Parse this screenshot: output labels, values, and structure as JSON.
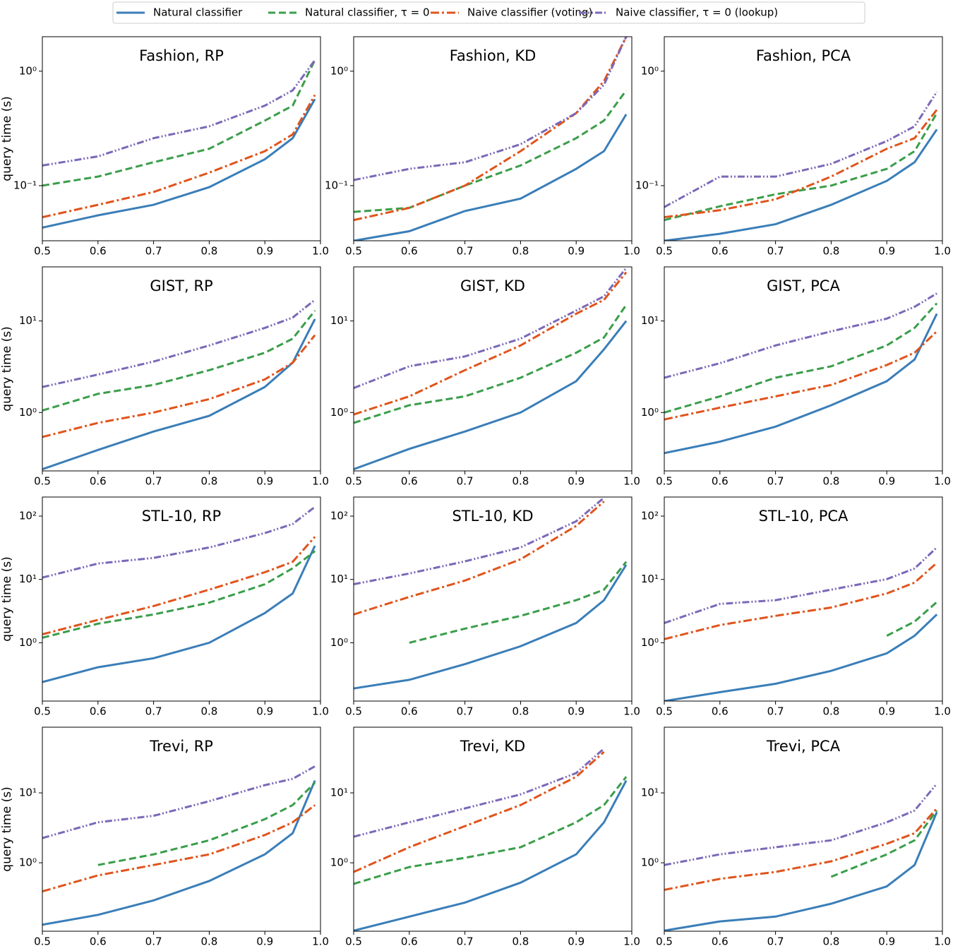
{
  "chart_data": [
    {
      "type": "line",
      "title": "Fashion, RP",
      "ylabel": "query time (s)",
      "log_y": true,
      "x": [
        0.5,
        0.6,
        0.7,
        0.8,
        0.9,
        0.95,
        0.99
      ],
      "xlim": [
        0.5,
        1.0
      ],
      "xticks": [
        0.5,
        0.6,
        0.7,
        0.8,
        0.9,
        {
          "value": 1.0,
          "label": "1.0"
        }
      ],
      "ylim": [
        0.033,
        2.0
      ],
      "yticks": [
        {
          "value": 0.1,
          "label": "10⁻¹"
        },
        {
          "value": 1,
          "label": "10⁰"
        }
      ],
      "series": [
        {
          "name": "Natural classifier",
          "color": "#3a7eb8",
          "linestyle": "solid",
          "values": [
            0.043,
            0.055,
            0.068,
            0.097,
            0.17,
            0.26,
            0.57
          ]
        },
        {
          "name": "Natural classifier, τ = 0",
          "color": "#3a9e4a",
          "linestyle": "dashed",
          "values": [
            0.1,
            0.12,
            0.16,
            0.21,
            0.37,
            0.5,
            1.25
          ]
        },
        {
          "name": "Naive classifier (voting)",
          "color": "#e0541c",
          "linestyle": "dashdot",
          "values": [
            0.053,
            0.068,
            0.088,
            0.13,
            0.2,
            0.28,
            0.62
          ]
        },
        {
          "name": "Naive classifier, τ = 0 (lookup)",
          "color": "#7b68b8",
          "linestyle": "dashdotdot",
          "values": [
            0.15,
            0.18,
            0.26,
            0.33,
            0.5,
            0.68,
            1.25
          ]
        }
      ]
    },
    {
      "type": "line",
      "title": "Fashion, KD",
      "log_y": true,
      "x": [
        0.5,
        0.6,
        0.7,
        0.8,
        0.9,
        0.95,
        0.99
      ],
      "xlim": [
        0.5,
        1.0
      ],
      "xticks": [
        0.5,
        0.6,
        0.7,
        0.8,
        0.9,
        {
          "value": 1.0,
          "label": "1.0"
        }
      ],
      "ylim": [
        0.033,
        2.0
      ],
      "yticks": [
        {
          "value": 0.1,
          "label": "10⁻¹"
        },
        {
          "value": 1,
          "label": "10⁰"
        }
      ],
      "series": [
        {
          "color": "#3a7eb8",
          "linestyle": "solid",
          "values": [
            0.033,
            0.04,
            0.06,
            0.077,
            0.14,
            0.2,
            0.42
          ]
        },
        {
          "color": "#3a9e4a",
          "linestyle": "dashed",
          "values": [
            0.059,
            0.064,
            0.1,
            0.15,
            0.26,
            0.37,
            0.68
          ]
        },
        {
          "color": "#e0541c",
          "linestyle": "dashdot",
          "values": [
            0.05,
            0.064,
            0.1,
            0.2,
            0.43,
            0.82,
            2.0
          ]
        },
        {
          "color": "#7b68b8",
          "linestyle": "dashdotdot",
          "values": [
            0.112,
            0.14,
            0.16,
            0.23,
            0.43,
            0.76,
            2.0
          ]
        }
      ]
    },
    {
      "type": "line",
      "title": "Fashion, PCA",
      "log_y": true,
      "x": [
        0.5,
        0.6,
        0.7,
        0.8,
        0.9,
        0.95,
        0.99
      ],
      "xlim": [
        0.5,
        1.0
      ],
      "xticks": [
        0.5,
        0.6,
        0.7,
        0.8,
        0.9,
        {
          "value": 1.0,
          "label": "1.0"
        }
      ],
      "ylim": [
        0.033,
        2.0
      ],
      "yticks": [
        {
          "value": 0.1,
          "label": "10⁻¹"
        },
        {
          "value": 1,
          "label": "10⁰"
        }
      ],
      "series": [
        {
          "color": "#3a7eb8",
          "linestyle": "solid",
          "values": [
            0.033,
            0.038,
            0.046,
            0.068,
            0.11,
            0.16,
            0.31
          ]
        },
        {
          "color": "#3a9e4a",
          "linestyle": "dashed",
          "values": [
            0.05,
            0.066,
            0.084,
            0.1,
            0.14,
            0.2,
            0.43
          ]
        },
        {
          "color": "#e0541c",
          "linestyle": "dashdot",
          "values": [
            0.053,
            0.061,
            0.076,
            0.12,
            0.21,
            0.26,
            0.46
          ]
        },
        {
          "color": "#7b68b8",
          "linestyle": "dashdotdot",
          "values": [
            0.065,
            0.12,
            0.12,
            0.155,
            0.245,
            0.33,
            0.66
          ]
        }
      ]
    },
    {
      "type": "line",
      "title": "GIST, RP",
      "ylabel": "query time (s)",
      "log_y": true,
      "x": [
        0.5,
        0.6,
        0.7,
        0.8,
        0.9,
        0.95,
        0.99
      ],
      "xlim": [
        0.5,
        1.0
      ],
      "xticks": [
        0.5,
        0.6,
        0.7,
        0.8,
        0.9,
        {
          "value": 1.0,
          "label": "1.0"
        }
      ],
      "ylim": [
        0.23,
        39
      ],
      "yticks": [
        {
          "value": 1,
          "label": "10⁰"
        },
        {
          "value": 10,
          "label": "10¹"
        }
      ],
      "series": [
        {
          "color": "#3a7eb8",
          "linestyle": "solid",
          "values": [
            0.24,
            0.39,
            0.62,
            0.92,
            1.9,
            3.5,
            10.5
          ]
        },
        {
          "color": "#3a9e4a",
          "linestyle": "dashed",
          "values": [
            1.05,
            1.6,
            2.0,
            2.9,
            4.5,
            6.4,
            13
          ]
        },
        {
          "color": "#e0541c",
          "linestyle": "dashdot",
          "values": [
            0.54,
            0.77,
            1.0,
            1.4,
            2.3,
            3.5,
            7
          ]
        },
        {
          "color": "#7b68b8",
          "linestyle": "dashdotdot",
          "values": [
            1.9,
            2.6,
            3.6,
            5.4,
            8.4,
            10.9,
            17
          ]
        }
      ]
    },
    {
      "type": "line",
      "title": "GIST, KD",
      "log_y": true,
      "x": [
        0.5,
        0.6,
        0.7,
        0.8,
        0.9,
        0.95,
        0.99
      ],
      "xlim": [
        0.5,
        1.0
      ],
      "xticks": [
        0.5,
        0.6,
        0.7,
        0.8,
        0.9,
        {
          "value": 1.0,
          "label": "1.0"
        }
      ],
      "ylim": [
        0.23,
        39
      ],
      "yticks": [
        {
          "value": 1,
          "label": "10⁰"
        },
        {
          "value": 10,
          "label": "10¹"
        }
      ],
      "series": [
        {
          "color": "#3a7eb8",
          "linestyle": "solid",
          "values": [
            0.24,
            0.4,
            0.62,
            1.0,
            2.2,
            4.9,
            10
          ]
        },
        {
          "color": "#3a9e4a",
          "linestyle": "dashed",
          "values": [
            0.77,
            1.2,
            1.5,
            2.4,
            4.5,
            6.6,
            15
          ]
        },
        {
          "color": "#e0541c",
          "linestyle": "dashdot",
          "values": [
            0.95,
            1.5,
            2.9,
            5.4,
            12,
            17,
            34
          ]
        },
        {
          "color": "#7b68b8",
          "linestyle": "dashdotdot",
          "values": [
            1.85,
            3.2,
            4.1,
            6.4,
            13,
            18.6,
            38
          ]
        }
      ]
    },
    {
      "type": "line",
      "title": "GIST, PCA",
      "log_y": true,
      "x": [
        0.5,
        0.6,
        0.7,
        0.8,
        0.9,
        0.95,
        0.99
      ],
      "xlim": [
        0.5,
        1.0
      ],
      "xticks": [
        0.5,
        0.6,
        0.7,
        0.8,
        0.9,
        {
          "value": 1.0,
          "label": "1.0"
        }
      ],
      "ylim": [
        0.23,
        39
      ],
      "yticks": [
        {
          "value": 1,
          "label": "10⁰"
        },
        {
          "value": 10,
          "label": "10¹"
        }
      ],
      "series": [
        {
          "color": "#3a7eb8",
          "linestyle": "solid",
          "values": [
            0.36,
            0.48,
            0.7,
            1.2,
            2.2,
            3.8,
            12
          ]
        },
        {
          "color": "#3a9e4a",
          "linestyle": "dashed",
          "values": [
            1.0,
            1.5,
            2.4,
            3.2,
            5.4,
            8.4,
            15.6
          ]
        },
        {
          "color": "#e0541c",
          "linestyle": "dashdot",
          "values": [
            0.84,
            1.13,
            1.5,
            2.0,
            3.3,
            4.5,
            7.7
          ]
        },
        {
          "color": "#7b68b8",
          "linestyle": "dashdotdot",
          "values": [
            2.4,
            3.45,
            5.4,
            7.7,
            10.6,
            14.3,
            20
          ]
        }
      ]
    },
    {
      "type": "line",
      "title": "STL-10, RP",
      "ylabel": "query time (s)",
      "log_y": true,
      "x": [
        0.5,
        0.6,
        0.7,
        0.8,
        0.9,
        0.95,
        0.99
      ],
      "xlim": [
        0.5,
        1.0
      ],
      "xticks": [
        0.5,
        0.6,
        0.7,
        0.8,
        0.9,
        {
          "value": 1.0,
          "label": "1.0"
        }
      ],
      "ylim": [
        0.12,
        200
      ],
      "yticks": [
        {
          "value": 1,
          "label": "10⁰"
        },
        {
          "value": 10,
          "label": "10¹"
        },
        {
          "value": 100,
          "label": "10²"
        }
      ],
      "series": [
        {
          "color": "#3a7eb8",
          "linestyle": "solid",
          "values": [
            0.24,
            0.41,
            0.57,
            1.0,
            2.95,
            6.0,
            34
          ]
        },
        {
          "color": "#3a9e4a",
          "linestyle": "dashed",
          "values": [
            1.2,
            2.0,
            2.8,
            4.3,
            8.4,
            15,
            28
          ]
        },
        {
          "color": "#e0541c",
          "linestyle": "dashdot",
          "values": [
            1.36,
            2.3,
            3.8,
            6.9,
            13,
            19,
            47
          ]
        },
        {
          "color": "#7b68b8",
          "linestyle": "dashdotdot",
          "values": [
            10.7,
            17.8,
            21.9,
            32,
            54,
            75,
            140
          ]
        }
      ]
    },
    {
      "type": "line",
      "title": "STL-10, KD",
      "log_y": true,
      "x": [
        0.5,
        0.6,
        0.7,
        0.8,
        0.9,
        0.95,
        0.99
      ],
      "xlim": [
        0.5,
        1.0
      ],
      "xticks": [
        0.5,
        0.6,
        0.7,
        0.8,
        0.9,
        {
          "value": 1.0,
          "label": "1.0"
        }
      ],
      "ylim": [
        0.12,
        200
      ],
      "yticks": [
        {
          "value": 1,
          "label": "10⁰"
        },
        {
          "value": 10,
          "label": "10¹"
        },
        {
          "value": 100,
          "label": "10²"
        }
      ],
      "series": [
        {
          "color": "#3a7eb8",
          "linestyle": "solid",
          "values": [
            0.19,
            0.26,
            0.46,
            0.88,
            2.05,
            4.7,
            17
          ]
        },
        {
          "color": "#3a9e4a",
          "linestyle": "dashed",
          "values": [
            null,
            1.0,
            1.67,
            2.66,
            4.7,
            6.9,
            19
          ]
        },
        {
          "color": "#e0541c",
          "linestyle": "dashdot",
          "values": [
            2.8,
            5.3,
            9.6,
            20.8,
            70,
            170,
            null
          ]
        },
        {
          "color": "#7b68b8",
          "linestyle": "dashdotdot",
          "values": [
            8.4,
            12.4,
            19.3,
            32,
            83,
            195,
            null
          ]
        }
      ]
    },
    {
      "type": "line",
      "title": "STL-10, PCA",
      "log_y": true,
      "x": [
        0.5,
        0.6,
        0.7,
        0.8,
        0.9,
        0.95,
        0.99
      ],
      "xlim": [
        0.5,
        1.0
      ],
      "xticks": [
        0.5,
        0.6,
        0.7,
        0.8,
        0.9,
        {
          "value": 1.0,
          "label": "1.0"
        }
      ],
      "ylim": [
        0.12,
        200
      ],
      "yticks": [
        {
          "value": 1,
          "label": "10⁰"
        },
        {
          "value": 10,
          "label": "10¹"
        },
        {
          "value": 100,
          "label": "10²"
        }
      ],
      "series": [
        {
          "color": "#3a7eb8",
          "linestyle": "solid",
          "values": [
            0.12,
            0.166,
            0.225,
            0.36,
            0.68,
            1.29,
            2.8
          ]
        },
        {
          "color": "#3a9e4a",
          "linestyle": "dashed",
          "values": [
            null,
            null,
            null,
            null,
            1.29,
            2.16,
            4.4
          ]
        },
        {
          "color": "#e0541c",
          "linestyle": "dashdot",
          "values": [
            1.14,
            1.9,
            2.66,
            3.6,
            6.0,
            8.9,
            18.3
          ]
        },
        {
          "color": "#7b68b8",
          "linestyle": "dashdotdot",
          "values": [
            2.05,
            4.1,
            4.7,
            6.9,
            10.1,
            14.9,
            32
          ]
        }
      ]
    },
    {
      "type": "line",
      "title": "Trevi, RP",
      "ylabel": "query time (s)",
      "log_y": true,
      "x": [
        0.5,
        0.6,
        0.7,
        0.8,
        0.9,
        0.95,
        0.99
      ],
      "xlim": [
        0.5,
        1.0
      ],
      "xticks": [
        0.5,
        0.6,
        0.7,
        0.8,
        0.9,
        {
          "value": 1.0,
          "label": "1.0"
        }
      ],
      "ylim": [
        0.105,
        87
      ],
      "yticks": [
        {
          "value": 1,
          "label": "10⁰"
        },
        {
          "value": 10,
          "label": "10¹"
        }
      ],
      "series": [
        {
          "color": "#3a7eb8",
          "linestyle": "solid",
          "values": [
            0.13,
            0.18,
            0.29,
            0.55,
            1.32,
            2.65,
            15
          ]
        },
        {
          "color": "#3a9e4a",
          "linestyle": "dashed",
          "values": [
            null,
            0.93,
            1.32,
            2.1,
            4.2,
            6.7,
            14
          ]
        },
        {
          "color": "#e0541c",
          "linestyle": "dashdot",
          "values": [
            0.39,
            0.66,
            0.93,
            1.32,
            2.5,
            3.8,
            6.7
          ]
        },
        {
          "color": "#7b68b8",
          "linestyle": "dashdotdot",
          "values": [
            2.26,
            3.8,
            4.7,
            7.6,
            12.9,
            15.9,
            24
          ]
        }
      ]
    },
    {
      "type": "line",
      "title": "Trevi, KD",
      "log_y": true,
      "x": [
        0.5,
        0.6,
        0.7,
        0.8,
        0.9,
        0.95,
        0.99
      ],
      "xlim": [
        0.5,
        1.0
      ],
      "xticks": [
        0.5,
        0.6,
        0.7,
        0.8,
        0.9,
        {
          "value": 1.0,
          "label": "1.0"
        }
      ],
      "ylim": [
        0.105,
        87
      ],
      "yticks": [
        {
          "value": 1,
          "label": "10⁰"
        },
        {
          "value": 10,
          "label": "10¹"
        }
      ],
      "series": [
        {
          "color": "#3a7eb8",
          "linestyle": "solid",
          "values": [
            0.107,
            0.17,
            0.27,
            0.52,
            1.32,
            3.8,
            15
          ]
        },
        {
          "color": "#3a9e4a",
          "linestyle": "dashed",
          "values": [
            0.5,
            0.87,
            1.18,
            1.67,
            3.8,
            6.7,
            17
          ]
        },
        {
          "color": "#e0541c",
          "linestyle": "dashdot",
          "values": [
            0.74,
            1.67,
            3.35,
            6.7,
            17,
            38.6,
            null
          ]
        },
        {
          "color": "#7b68b8",
          "linestyle": "dashdotdot",
          "values": [
            2.36,
            3.8,
            6.0,
            9.5,
            19.2,
            43,
            null
          ]
        }
      ]
    },
    {
      "type": "line",
      "title": "Trevi, PCA",
      "log_y": true,
      "x": [
        0.5,
        0.6,
        0.7,
        0.8,
        0.9,
        0.95,
        0.99
      ],
      "xlim": [
        0.5,
        1.0
      ],
      "xticks": [
        0.5,
        0.6,
        0.7,
        0.8,
        0.9,
        {
          "value": 1.0,
          "label": "1.0"
        }
      ],
      "ylim": [
        0.105,
        87
      ],
      "yticks": [
        {
          "value": 1,
          "label": "10⁰"
        },
        {
          "value": 10,
          "label": "10¹"
        }
      ],
      "series": [
        {
          "color": "#3a7eb8",
          "linestyle": "solid",
          "values": [
            0.107,
            0.145,
            0.17,
            0.26,
            0.46,
            0.93,
            5.3
          ]
        },
        {
          "color": "#3a9e4a",
          "linestyle": "dashed",
          "values": [
            null,
            null,
            null,
            0.63,
            1.32,
            2.1,
            5.6
          ]
        },
        {
          "color": "#e0541c",
          "linestyle": "dashdot",
          "values": [
            0.41,
            0.59,
            0.74,
            1.05,
            1.87,
            2.65,
            6.0
          ]
        },
        {
          "color": "#7b68b8",
          "linestyle": "dashdotdot",
          "values": [
            0.93,
            1.32,
            1.67,
            2.1,
            3.8,
            5.6,
            13.5
          ]
        }
      ]
    }
  ]
}
